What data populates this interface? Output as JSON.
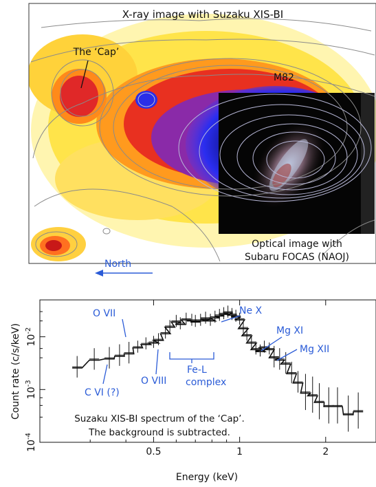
{
  "xray_panel": {
    "title": "X-ray image with Suzaku XIS-BI",
    "cap_label": "The ‘Cap’",
    "m82_label": "M82",
    "optical_label_line1": "Optical image with",
    "optical_label_line2": "Subaru FOCAS (NAOJ)",
    "north_label": "North",
    "colors": {
      "arrow": "#2a5bd7",
      "spectrum_labels": "#2a5bd7"
    }
  },
  "spectrum_panel": {
    "ylabel": "Count rate (c/s/keV)",
    "xlabel": "Energy (keV)",
    "x_ticks": [
      "0.5",
      "1",
      "2"
    ],
    "y_ticks": [
      "10",
      "10",
      "10"
    ],
    "y_tick_exps": [
      "-2",
      "-3",
      "-4"
    ],
    "lines": {
      "ovii": "O VII",
      "nex": "Ne X",
      "mgxi": "Mg XI",
      "mgxii": "Mg XII",
      "cvi": "C VI (?)",
      "oviii": "O VIII",
      "fel_1": "Fe-L",
      "fel_2": "complex"
    },
    "caption_1": "Suzaku XIS-BI spectrum of the ‘Cap’.",
    "caption_2": "The background is subtracted."
  },
  "chart_data": {
    "type": "scatter",
    "xscale": "log",
    "yscale": "log",
    "xlim": [
      0.2,
      3.0
    ],
    "ylim": [
      0.0001,
      0.05
    ],
    "xlabel": "Energy (keV)",
    "ylabel": "Count rate (c/s/keV)",
    "x": [
      0.27,
      0.31,
      0.35,
      0.38,
      0.41,
      0.44,
      0.47,
      0.5,
      0.52,
      0.55,
      0.57,
      0.6,
      0.62,
      0.65,
      0.68,
      0.7,
      0.73,
      0.76,
      0.79,
      0.82,
      0.85,
      0.88,
      0.91,
      0.94,
      0.97,
      1.0,
      1.03,
      1.06,
      1.1,
      1.14,
      1.18,
      1.22,
      1.27,
      1.32,
      1.38,
      1.45,
      1.52,
      1.6,
      1.7,
      1.8,
      1.9,
      2.05,
      2.2,
      2.4,
      2.6
    ],
    "y": [
      0.0027,
      0.0038,
      0.004,
      0.0045,
      0.005,
      0.0065,
      0.0075,
      0.008,
      0.009,
      0.012,
      0.016,
      0.02,
      0.018,
      0.022,
      0.021,
      0.02,
      0.021,
      0.023,
      0.021,
      0.024,
      0.026,
      0.028,
      0.03,
      0.027,
      0.025,
      0.022,
      0.015,
      0.011,
      0.008,
      0.006,
      0.0055,
      0.0065,
      0.006,
      0.0042,
      0.0038,
      0.0032,
      0.0021,
      0.0014,
      0.0009,
      0.0008,
      0.0006,
      0.0005,
      0.0005,
      0.00035,
      0.0004
    ]
  }
}
